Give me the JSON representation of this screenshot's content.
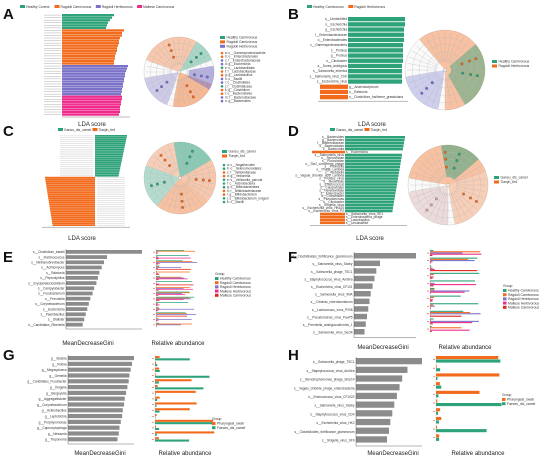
{
  "colors": {
    "teal": "#2ea37a",
    "orange": "#f26b1d",
    "purple": "#7a72c8",
    "pink": "#ee2b8b",
    "gray": "#8c8c8c",
    "red_tick": "#e0241b"
  },
  "panels": {
    "A": {
      "label": "A",
      "xlabel": "LDA score",
      "legend": [
        "Healthy Control",
        "Ragdoll Carnivorous",
        "Ragdoll Herbivorous",
        "Maltese Carnivorous"
      ],
      "legend_colors": [
        "#2ea37a",
        "#f26b1d",
        "#7a72c8",
        "#ee2b8b"
      ],
      "clado_legend": [
        "Healthy Carnivorous",
        "Ragdoll Carnivorous",
        "Ragdoll Herbivorous"
      ],
      "clado_legend_colors": [
        "#2ea37a",
        "#f26b1d",
        "#7a72c8"
      ],
      "clado_items": [
        "a: c__Gammaproteobacteria",
        "b: o__Enterobacterales",
        "c: f__Enterobacteriaceae",
        "d: g__Escherichia",
        "e: o__Lactobacillales",
        "f: f__Lactobacillaceae",
        "g: g__Lactobacillus",
        "h: c__Bacilli",
        "i: o__Clostridiales",
        "j: f__Clostridiaceae",
        "k: g__Clostridium",
        "l: o__Bacteroidales",
        "m: f__Bacteroidaceae",
        "n: g__Bacteroides"
      ]
    },
    "B": {
      "label": "B",
      "xlabel": "LDA score",
      "legend": [
        "Healthy Carnivorous",
        "Ragdoll Herbivorous"
      ],
      "legend_colors": [
        "#2ea37a",
        "#f26b1d"
      ],
      "bar_labels": [
        "s__Unidentified",
        "s__Escherichia",
        "g__Escherichia",
        "f__Enterobacteriaceae",
        "o__Enterobacterales",
        "c__Gammaproteobacteria",
        "s__Proteus",
        "g__Proteus",
        "s__Citrobacter",
        "s__Dorea_ambiguus",
        "s__Salmonella_enterica",
        "s__Salmonella_virus_ChK",
        "s__Escherichia_virus",
        "g__Anaerobutyricum",
        "s__Ralstonia",
        "s__Clostridium_fusiforme_grassiniana"
      ],
      "clado_legend": [
        "Healthy Carnivorous",
        "Ragdoll Herbivorous"
      ],
      "clado_legend_colors": [
        "#2ea37a",
        "#f26b1d"
      ]
    },
    "C": {
      "label": "C",
      "xlabel": "LDA score",
      "legend": [
        "Gansu_dis_camel",
        "Tianjin_fed"
      ],
      "legend_colors": [
        "#2ea37a",
        "#f26b1d"
      ],
      "clado_legend": [
        "Gansu_dis_camel",
        "Tianjin_fed"
      ],
      "clado_legend_colors": [
        "#2ea37a",
        "#f26b1d"
      ],
      "clado_items": [
        "a: c__Negativicutes",
        "b: o__Selenomonadales",
        "c: f__Veillonellaceae",
        "d: g__Veillonella",
        "e: s__Veillonella_parvula",
        "f: c__Actinobacteria",
        "g: o__Bifidobacteriales",
        "h: f__Bifidobacteriaceae",
        "i: g__Bifidobacterium",
        "j: s__Bifidobacterium_longum",
        "k: c__Bacilli"
      ]
    },
    "D": {
      "label": "D",
      "xlabel": "LDA score",
      "legend": [
        "Gansu_dis_camel",
        "Tianjin_fed"
      ],
      "legend_colors": [
        "#2ea37a",
        "#f26b1d"
      ],
      "clado_legend": [
        "Gansu_dis_camel",
        "Tianjin_fed"
      ],
      "clado_legend_colors": [
        "#2ea37a",
        "#f26b1d"
      ],
      "bar_labels": [
        "s__Bacteroides",
        "g__Bacteroides",
        "f__Bacteroidaceae",
        "o__Bacteroidales",
        "c__Bacteroidia",
        "s__Escherichia",
        "s__Salmonella_virus",
        "s__Siphoviridae",
        "s__Podoviridae",
        "s__Stx2_converting_phage",
        "s__Prevotella",
        "s__Phage_Lambda",
        "s__Klebsiella",
        "s__Vagoal_chloride_acid_Lambda",
        "s__Proteus_virus",
        "s__Myoviridae",
        "s__Enterococcus",
        "s__Caudovirales",
        "s__Herelleviridae",
        "s__Enterobacter",
        "s__Cronobacter",
        "s__Pseudomonas",
        "s__Citrobacter",
        "s__Shigella_virus",
        "s__Escherichia_virus_HK620",
        "s__Escherichia_virus_P2",
        "s__Salmonella_virus_SE1",
        "s__Enterobacteria_phage",
        "s__Lactobacillus",
        "s__Unclassified"
      ]
    },
    "E": {
      "label": "E",
      "xlabel": "MeanDecreaseGini",
      "xlabel2": "Relative abundance",
      "features": [
        "s__Clostridium_baratii",
        "s__Ruminococcus",
        "s__Methanobrevibacter",
        "s__Actinomyces",
        "s__Ralstonia",
        "s__Peptoniphilus",
        "s__Erysipelatoclostridium",
        "s__Campylobacter",
        "s__Fusobacterium",
        "s__Prevotella",
        "s__Corynebacterium",
        "s__Escherichia",
        "s__Paenibacillus",
        "s__Dialister",
        "s__Candidatus_Rikenella"
      ],
      "gini": [
        1.0,
        0.54,
        0.5,
        0.47,
        0.44,
        0.42,
        0.4,
        0.37,
        0.35,
        0.32,
        0.3,
        0.28,
        0.26,
        0.24,
        0.22
      ],
      "legend_title": "Group",
      "legend": [
        "Healthy Carnivorous",
        "Ragdoll Carnivorous",
        "Ragdoll Herbivorous",
        "Maltese Herbivorous",
        "Maltese Carnivorous"
      ],
      "legend_colors": [
        "#2ea37a",
        "#f26b1d",
        "#7a72c8",
        "#ee2b8b",
        "#e0241b"
      ]
    },
    "F": {
      "label": "F",
      "xlabel": "MeanDecreaseGini",
      "xlabel2": "Relative abundance",
      "features": [
        "s__Clostridioides_fortificance_glammorum",
        "s__Salmonella_virus_Saxby",
        "s__Salmonella_phage_TSC1",
        "s__Staphylococcus_virus_Andhra",
        "s__Escherichia_virus_CF101",
        "s__Salmonella_virus_9NA",
        "s__Citrobac_roberdsonianum",
        "s__Lactococcus_virus_P008",
        "s__Pseudomonas_virus_PaoP5",
        "s__Prevotella_ambiguousiformis_1",
        "s__Salmonella_virus_Sect4"
      ],
      "gini": [
        1.0,
        0.42,
        0.36,
        0.33,
        0.3,
        0.27,
        0.25,
        0.23,
        0.21,
        0.19,
        0.17
      ],
      "legend_title": "Group",
      "legend": [
        "Healthy Carnivorous",
        "Ragdoll Carnivorous",
        "Ragdoll Herbivorous",
        "Maltese Herbivorous",
        "Maltese Carnivorous"
      ],
      "legend_colors": [
        "#2ea37a",
        "#f26b1d",
        "#7a72c8",
        "#ee2b8b",
        "#e0241b"
      ]
    },
    "G": {
      "label": "G",
      "xlabel": "MeanDecreaseGini",
      "xlabel2": "Relative abundance",
      "features": [
        "g__Slackia",
        "g__Rothia",
        "g__Megasphaera",
        "g__Gemella",
        "g__Candidatus_Fusobacter",
        "g__Kingella",
        "g__Bergeyella",
        "g__Aggregatibacter",
        "g__Corynebacterium",
        "g__Actinobacillus",
        "g__Leptotrichia",
        "g__Porphyromonas",
        "g__Capnocytophaga",
        "g__Neisseria",
        "g__Treponema"
      ],
      "gini": [
        1.0,
        0.97,
        0.95,
        0.93,
        0.92,
        0.9,
        0.88,
        0.86,
        0.85,
        0.83,
        0.82,
        0.8,
        0.78,
        0.77,
        0.75
      ],
      "legend_title": "Group",
      "legend": [
        "Pharyngeal_swab",
        "Faeces_dis_camel"
      ],
      "legend_colors": [
        "#f26b1d",
        "#2ea37a"
      ]
    },
    "H": {
      "label": "H",
      "xlabel": "MeanDecreaseGini",
      "xlabel2": "Relative abundance",
      "features": [
        "s__Salmonella_phage_TSC1",
        "s__Staphylococcus_virus_Andhra",
        "s__Stenotrophomonas_phage_Smp14",
        "s__Vagalo_chloride_phage_enterobacteria",
        "s__Enterococcus_virus_CF1022",
        "s__Salmonella_virus_Saxby",
        "s__Staphylococcus_virus_CD4",
        "s__Escherichia_virus_HK2",
        "s__Clostridioides_fortificance_glammorum",
        "s__Shigella_virus_SF9"
      ],
      "gini": [
        1.0,
        0.78,
        0.7,
        0.66,
        0.62,
        0.58,
        0.55,
        0.52,
        0.5,
        0.47
      ],
      "legend_title": "Group",
      "legend": [
        "Pharyngeal_swab",
        "Faeces_dis_camel"
      ],
      "legend_colors": [
        "#f26b1d",
        "#2ea37a"
      ]
    }
  }
}
